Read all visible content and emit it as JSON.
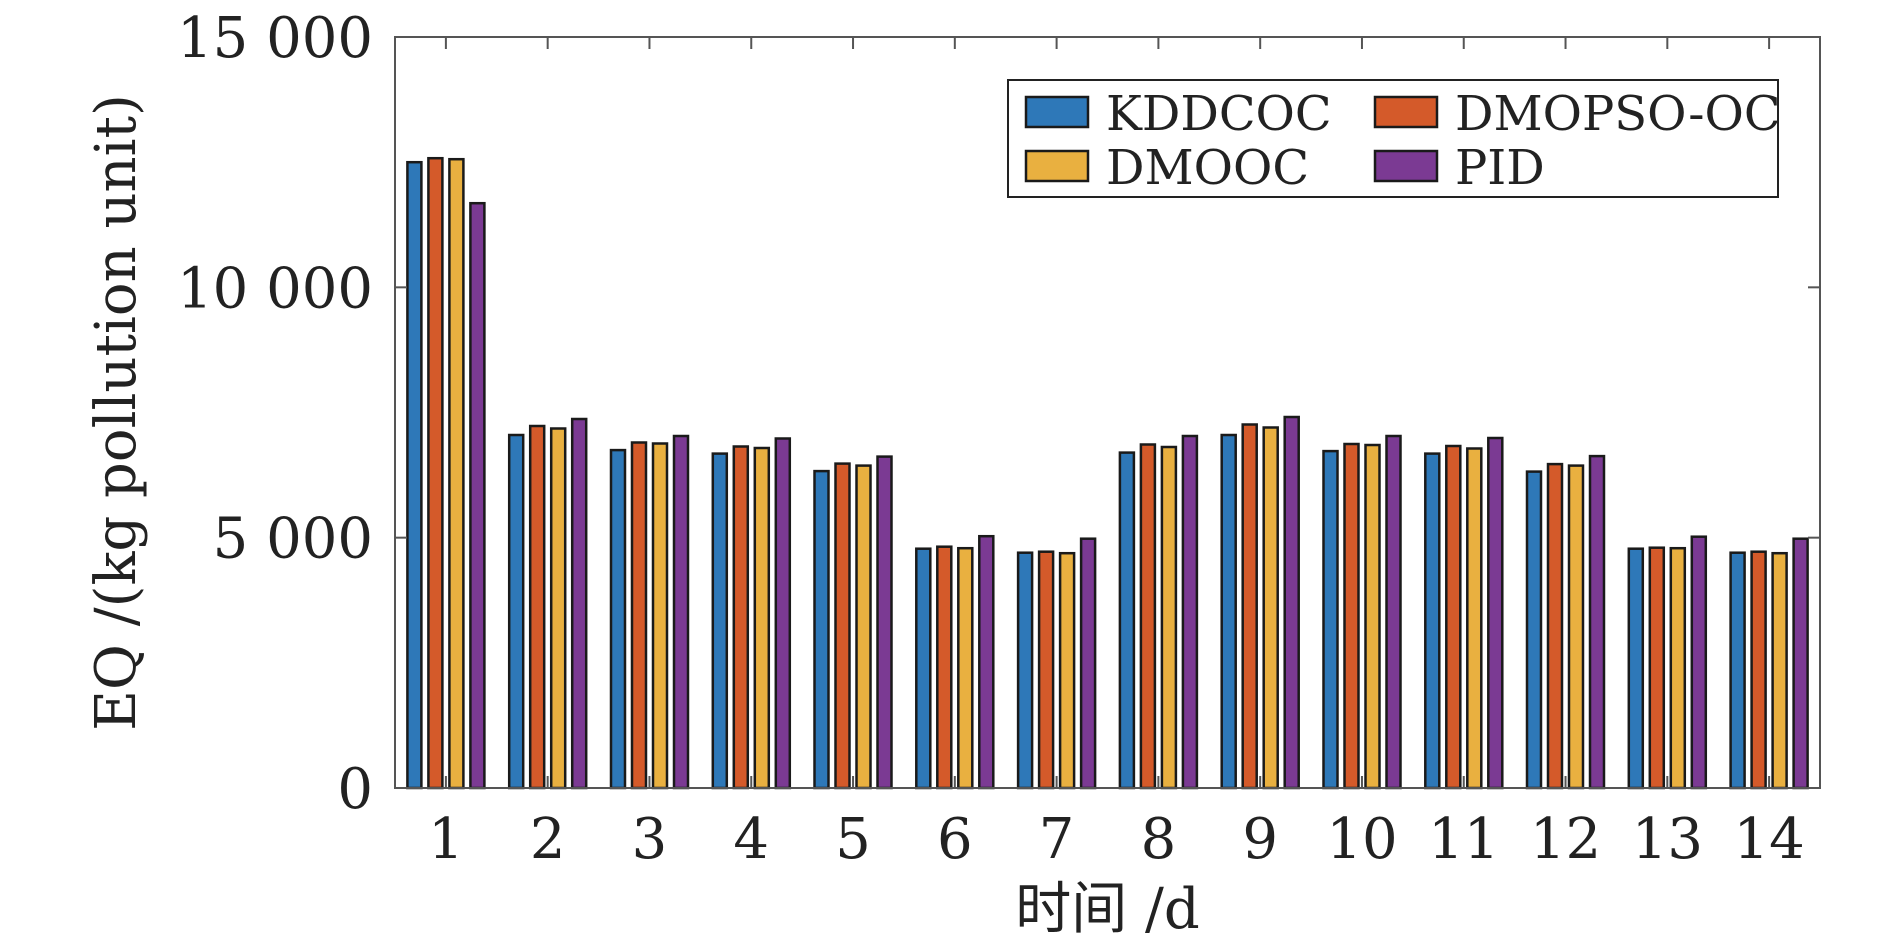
{
  "chart_data": {
    "type": "bar",
    "title": "",
    "xlabel": "时间 /d",
    "ylabel": "EQ /(kg pollution unit)",
    "categories": [
      "1",
      "2",
      "3",
      "4",
      "5",
      "6",
      "7",
      "8",
      "9",
      "10",
      "11",
      "12",
      "13",
      "14"
    ],
    "ylim": [
      0,
      15000
    ],
    "yticks": [
      0,
      5000,
      10000,
      15000
    ],
    "ytick_labels": [
      "0",
      "5 000",
      "10 000",
      "15 000"
    ],
    "grid": false,
    "legend_position": "top-right",
    "legend_columns": 2,
    "series": [
      {
        "name": "KDDCOC",
        "color": "#2E78B8",
        "values": [
          12500,
          7050,
          6750,
          6680,
          6330,
          4780,
          4700,
          6700,
          7050,
          6730,
          6680,
          6320,
          4780,
          4700
        ]
      },
      {
        "name": "DMOPSO-OC",
        "color": "#D45A2A",
        "values": [
          12580,
          7230,
          6900,
          6820,
          6480,
          4820,
          4720,
          6860,
          7260,
          6870,
          6830,
          6470,
          4800,
          4720
        ]
      },
      {
        "name": "DMOOC",
        "color": "#E9B040",
        "values": [
          12560,
          7180,
          6880,
          6790,
          6440,
          4790,
          4690,
          6810,
          7200,
          6850,
          6780,
          6440,
          4790,
          4690
        ]
      },
      {
        "name": "PID",
        "color": "#7B3A93",
        "values": [
          11680,
          7370,
          7030,
          6980,
          6620,
          5030,
          4980,
          7030,
          7410,
          7030,
          6990,
          6630,
          5020,
          4980
        ]
      }
    ]
  }
}
